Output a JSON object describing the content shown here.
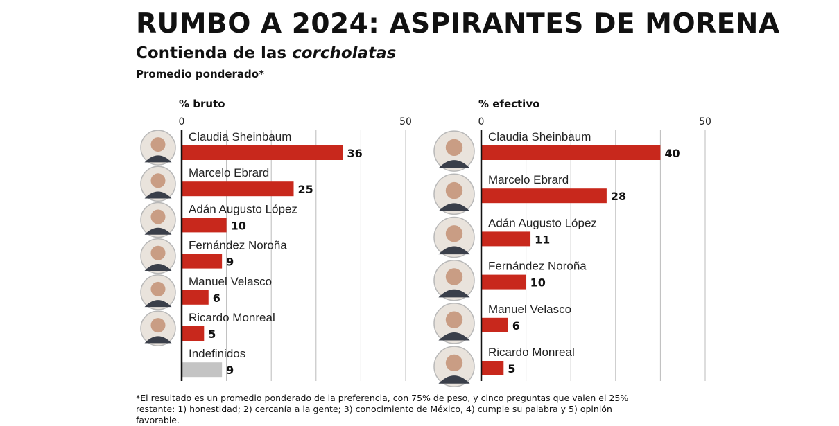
{
  "title": "RUMBO A 2024: ASPIRANTES DE MORENA",
  "subtitle_plain": "Contienda de las ",
  "subtitle_italic": "corcholatas",
  "note": "Promedio ponderado*",
  "footnote_line1": "*El resultado es un promedio ponderado de la preferencia, con 75% de peso, y cinco preguntas que valen el 25%",
  "footnote_line2": "restante: 1) honestidad; 2) cercanía a la gente; 3) conocimiento de México, 4) cumple su palabra y 5) opinión favorable.",
  "colors": {
    "bar": "#c8281c",
    "undefined_bar": "#c4c4c4",
    "grid": "#bbbbbb",
    "axis": "#111111"
  },
  "chart_data": [
    {
      "type": "bar",
      "orientation": "horizontal",
      "xlabel": "% bruto",
      "xlim": [
        0,
        50
      ],
      "tick_labels": [
        "0",
        "50"
      ],
      "categories": [
        "Claudia Sheinbaum",
        "Marcelo Ebrard",
        "Adán Augusto López",
        "Fernández Noroña",
        "Manuel Velasco",
        "Ricardo Monreal",
        "Indefinidos"
      ],
      "values": [
        36,
        25,
        10,
        9,
        6,
        5,
        9
      ],
      "portraits": [
        true,
        true,
        true,
        true,
        true,
        true,
        false
      ],
      "highlight": [
        false,
        false,
        false,
        false,
        false,
        false,
        true
      ]
    },
    {
      "type": "bar",
      "orientation": "horizontal",
      "xlabel": "% efectivo",
      "xlim": [
        0,
        50
      ],
      "tick_labels": [
        "0",
        "50"
      ],
      "categories": [
        "Claudia Sheinbaum",
        "Marcelo Ebrard",
        "Adán Augusto López",
        "Fernández Noroña",
        "Manuel Velasco",
        "Ricardo Monreal"
      ],
      "values": [
        40,
        28,
        11,
        10,
        6,
        5
      ],
      "portraits": [
        true,
        true,
        true,
        true,
        true,
        true
      ],
      "highlight": [
        false,
        false,
        false,
        false,
        false,
        false
      ]
    }
  ]
}
